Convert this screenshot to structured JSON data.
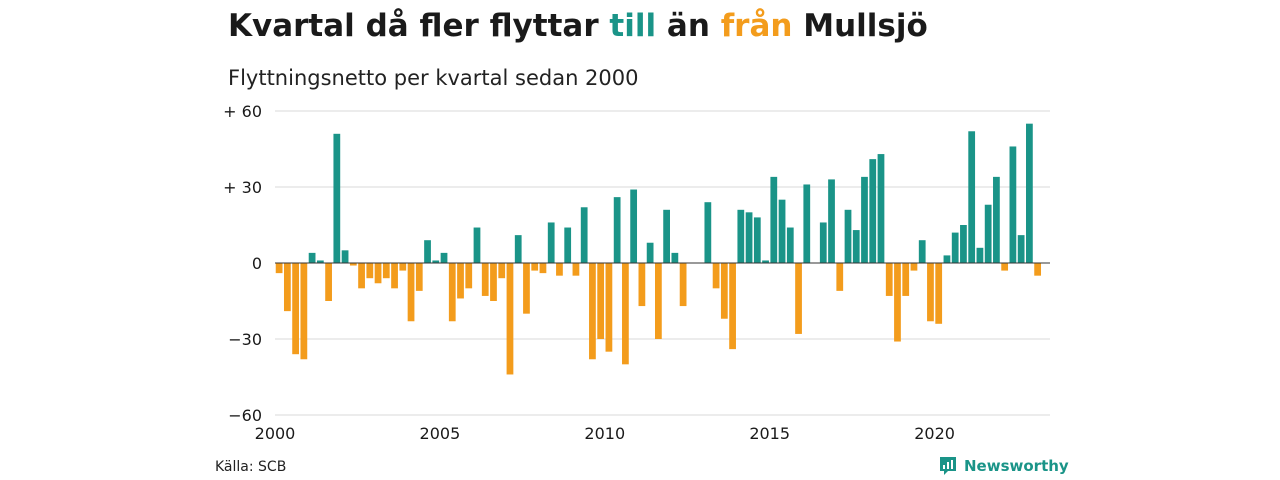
{
  "title": {
    "part1": "Kvartal då fler flyttar ",
    "till": "till",
    "part2": " än ",
    "fran": "från",
    "part3": " Mullsjö"
  },
  "subtitle": "Flyttningsnetto per kvartal sedan 2000",
  "source": "Källa: SCB",
  "brand": {
    "name": "Newsworthy",
    "icon": "newsworthy-logo-icon"
  },
  "colors": {
    "positive": "#1a9488",
    "negative": "#f39c1c",
    "grid": "#d9d9d9",
    "text": "#1a1a1a"
  },
  "chart_data": {
    "type": "bar",
    "title": "Kvartal då fler flyttar till än från Mullsjö",
    "subtitle": "Flyttningsnetto per kvartal sedan 2000",
    "ylim": [
      -60,
      60
    ],
    "yticks": [
      60,
      30,
      0,
      -30,
      -60
    ],
    "ytick_labels": [
      "+ 60",
      "+ 30",
      "0",
      "−30",
      "−60"
    ],
    "xticks": [
      2000,
      2005,
      2010,
      2015,
      2020
    ],
    "xlim": [
      2000,
      2023.5
    ],
    "grid": true,
    "quarters_start": "2000-Q1",
    "values": [
      -4,
      -19,
      -36,
      -38,
      4,
      1,
      -15,
      51,
      5,
      -1,
      -10,
      -6,
      -8,
      -6,
      -10,
      -3,
      -23,
      -11,
      9,
      1,
      4,
      -23,
      -14,
      -10,
      14,
      -13,
      -15,
      -6,
      -44,
      11,
      -20,
      -3,
      -4,
      16,
      -5,
      14,
      -5,
      22,
      -38,
      -30,
      -35,
      26,
      -40,
      29,
      -17,
      8,
      -30,
      21,
      4,
      -17,
      0,
      0,
      24,
      -10,
      -22,
      -34,
      21,
      20,
      18,
      1,
      34,
      25,
      14,
      -28,
      31,
      0,
      16,
      33,
      -11,
      21,
      13,
      34,
      41,
      43,
      -13,
      -31,
      -13,
      -3,
      9,
      -23,
      -24,
      3,
      12,
      15,
      52,
      6,
      23,
      34,
      -3,
      46,
      11,
      55,
      -5
    ]
  }
}
